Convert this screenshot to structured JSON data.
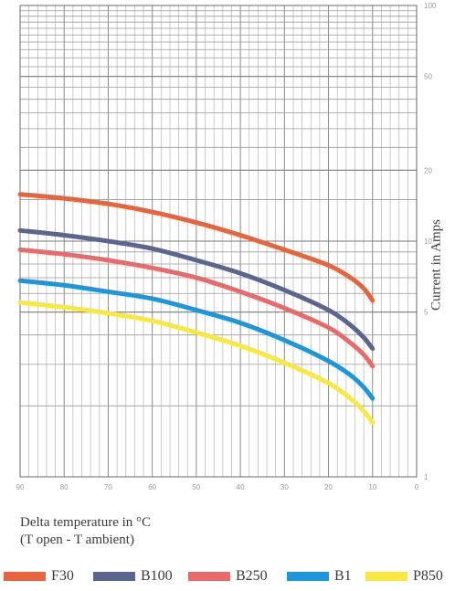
{
  "chart_data": {
    "type": "line",
    "x_axis": {
      "label_line1": "Delta temperature in °C",
      "label_line2": "(T open - T ambient)",
      "ticks": [
        90,
        80,
        70,
        60,
        50,
        40,
        30,
        20,
        10,
        0
      ],
      "range": [
        90,
        0
      ]
    },
    "y_axis": {
      "label": "Current in Amps",
      "scale": "log",
      "ticks": [
        100,
        50,
        20,
        10,
        5,
        1
      ],
      "range": [
        1,
        100
      ]
    },
    "grid": true,
    "legend_position": "bottom",
    "series": [
      {
        "name": "F30",
        "color": "#e8643c",
        "x": [
          90,
          80,
          70,
          60,
          50,
          40,
          30,
          20,
          15,
          12,
          10
        ],
        "y": [
          15.8,
          15.2,
          14.4,
          13.3,
          12.0,
          10.6,
          9.2,
          7.9,
          7.0,
          6.3,
          5.6
        ]
      },
      {
        "name": "B100",
        "color": "#5a6690",
        "x": [
          90,
          80,
          70,
          60,
          50,
          40,
          30,
          20,
          15,
          12,
          10
        ],
        "y": [
          11.1,
          10.6,
          10.0,
          9.3,
          8.3,
          7.3,
          6.2,
          5.1,
          4.4,
          3.9,
          3.5
        ]
      },
      {
        "name": "B250",
        "color": "#e86a6a",
        "x": [
          90,
          80,
          70,
          60,
          50,
          40,
          30,
          20,
          15,
          12,
          10
        ],
        "y": [
          9.2,
          8.8,
          8.3,
          7.7,
          7.0,
          6.1,
          5.2,
          4.3,
          3.7,
          3.3,
          2.95
        ]
      },
      {
        "name": "B1",
        "color": "#1e96dc",
        "x": [
          90,
          80,
          70,
          60,
          50,
          40,
          30,
          20,
          15,
          12,
          10
        ],
        "y": [
          6.8,
          6.5,
          6.1,
          5.7,
          5.1,
          4.5,
          3.8,
          3.1,
          2.7,
          2.4,
          2.15
        ]
      },
      {
        "name": "P850",
        "color": "#f8e840",
        "x": [
          90,
          80,
          70,
          60,
          50,
          40,
          30,
          20,
          15,
          12,
          10
        ],
        "y": [
          5.5,
          5.25,
          4.95,
          4.6,
          4.1,
          3.6,
          3.05,
          2.5,
          2.15,
          1.9,
          1.7
        ]
      }
    ]
  }
}
